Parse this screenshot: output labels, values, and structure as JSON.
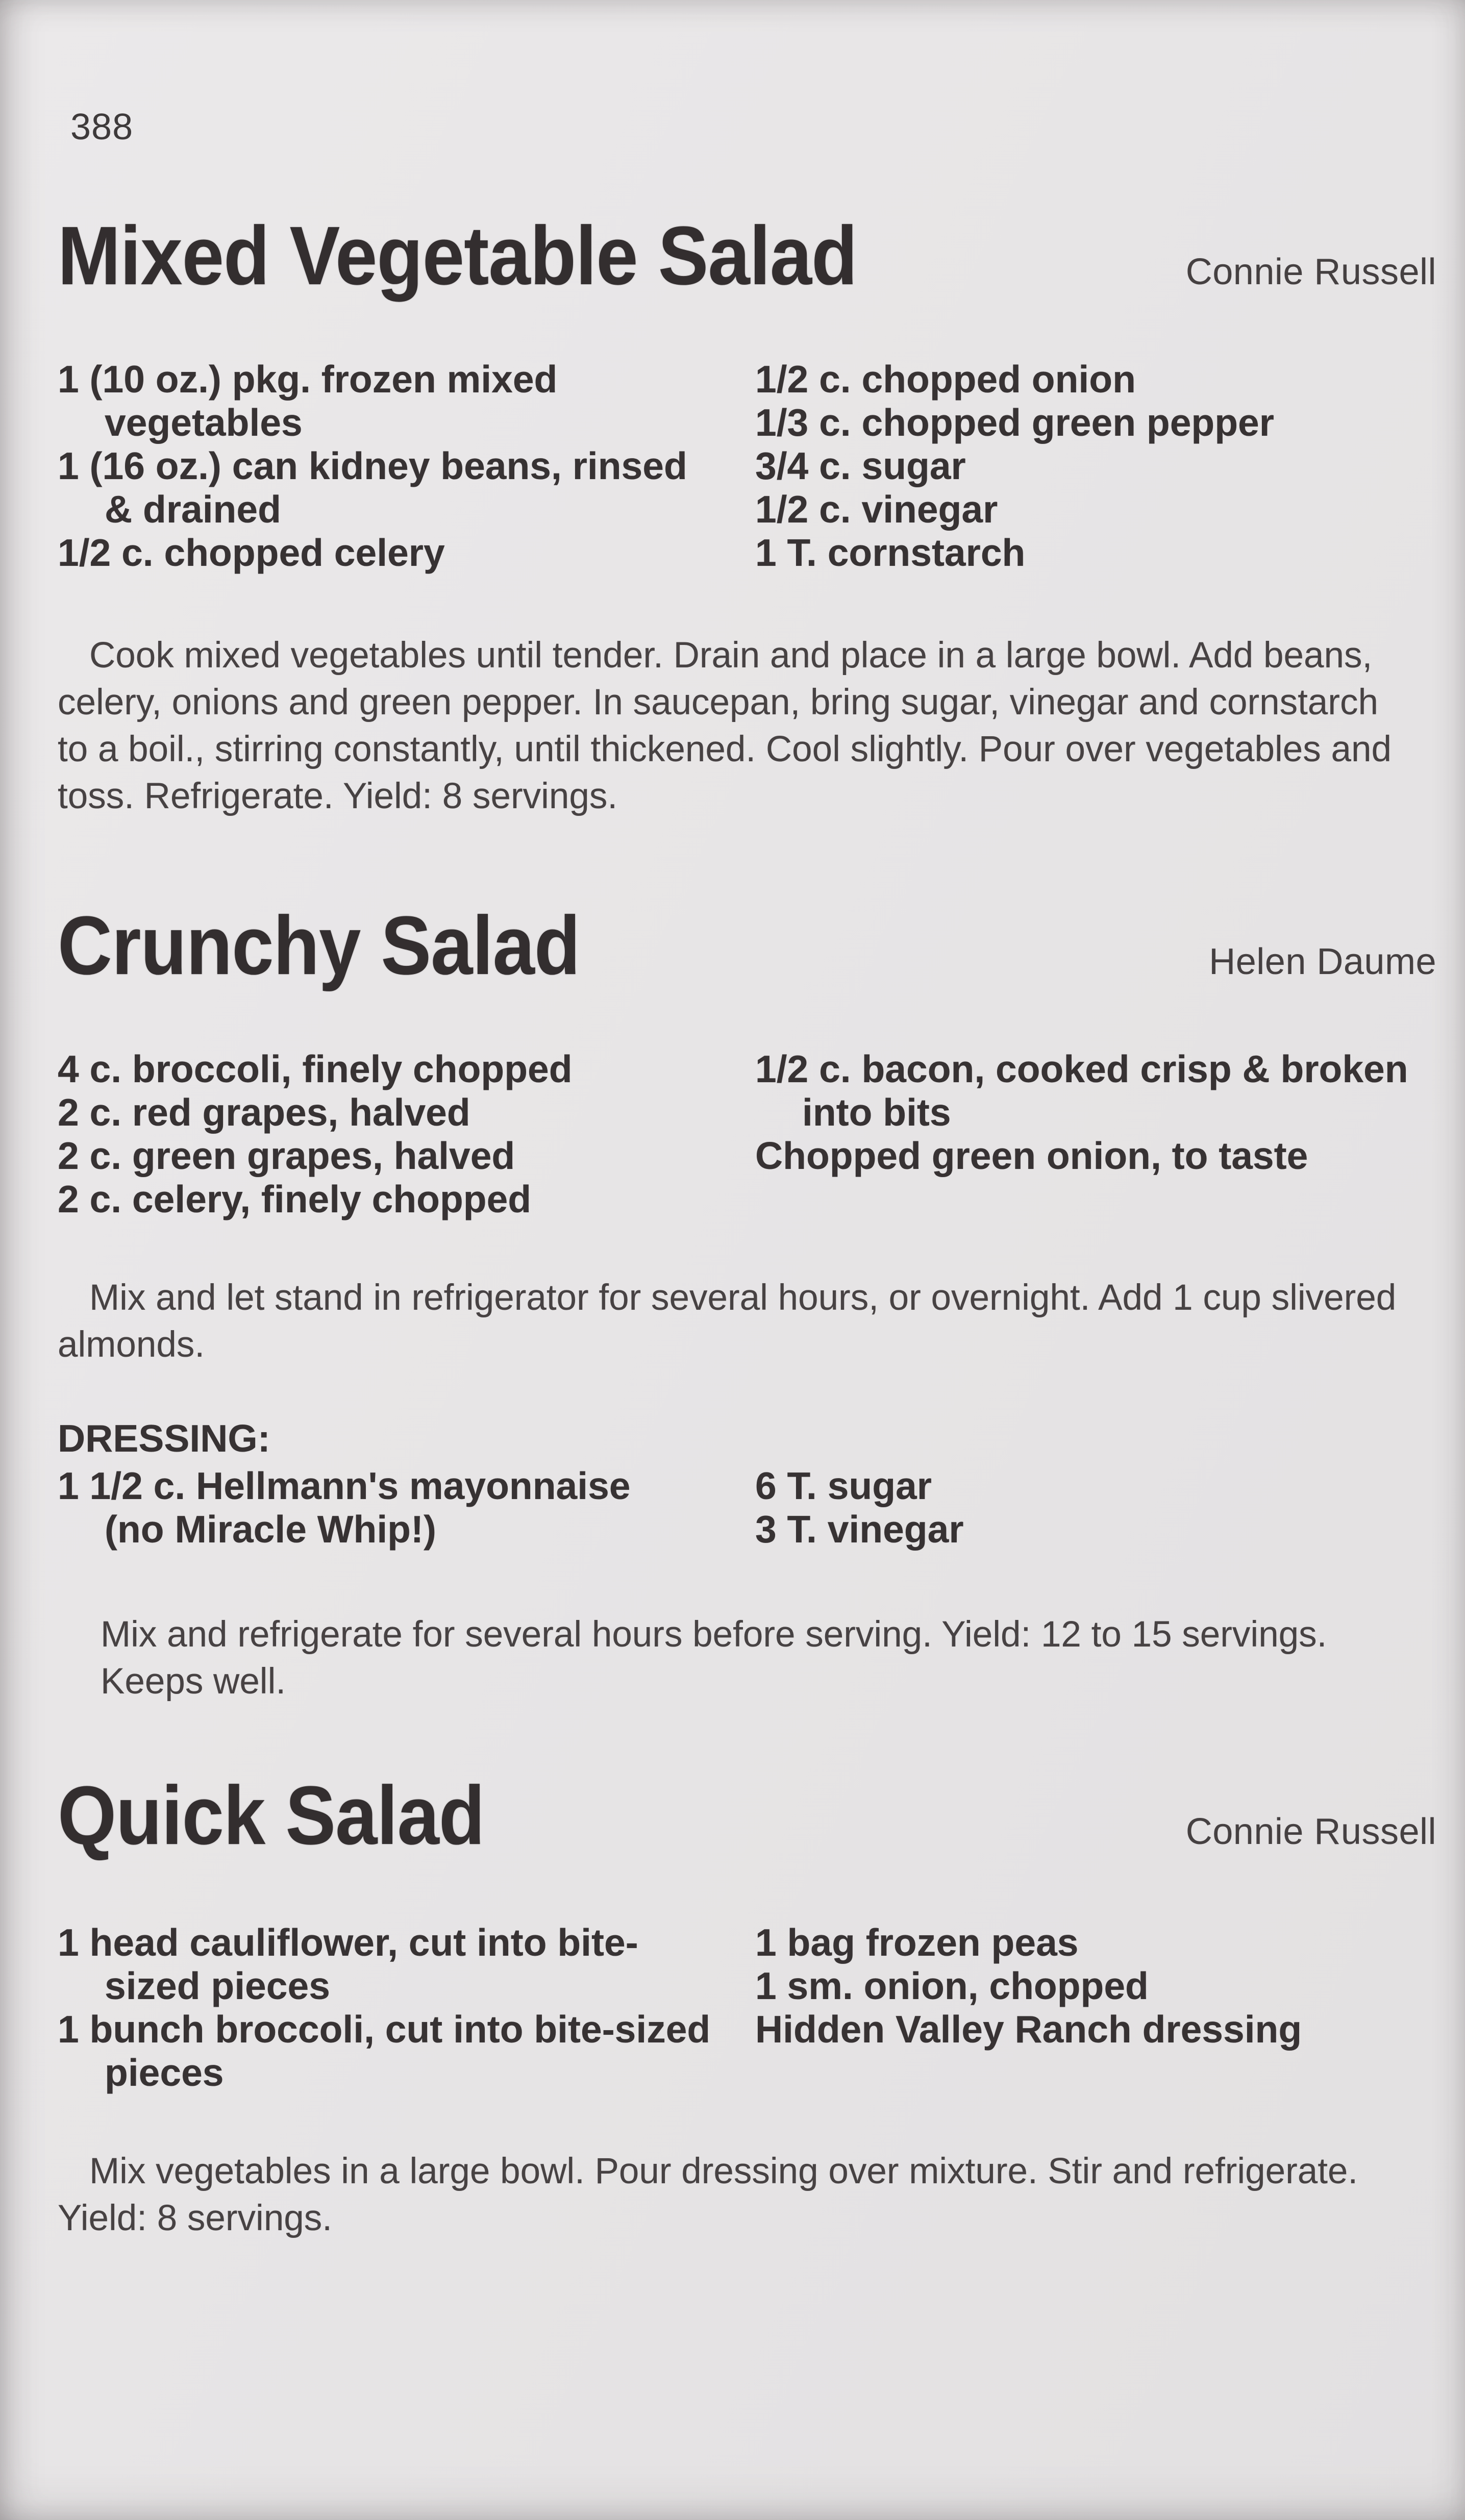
{
  "page": {
    "number": "388",
    "paper_color": "#e7e5e6",
    "ink_color": "#3a3536"
  },
  "recipes": [
    {
      "title": "Mixed Vegetable Salad",
      "author": "Connie Russell",
      "ingredients_left": [
        "1 (10 oz.) pkg. frozen mixed\nvegetables",
        "1 (16 oz.) can kidney beans, rinsed\n& drained",
        "1/2 c. chopped celery"
      ],
      "ingredients_right": [
        "1/2 c. chopped onion",
        "1/3 c. chopped green pepper",
        "3/4 c. sugar",
        "1/2 c. vinegar",
        "1 T. cornstarch"
      ],
      "instructions": "Cook mixed vegetables until tender. Drain and place in a large bowl. Add beans,\ncelery, onions and green pepper. In saucepan, bring sugar, vinegar and cornstarch\nto a boil., stirring constantly, until thickened. Cool slightly. Pour over vegetables and\ntoss. Refrigerate. Yield: 8 servings."
    },
    {
      "title": "Crunchy Salad",
      "author": "Helen Daume",
      "ingredients_left": [
        "4 c. broccoli, finely chopped",
        "2 c. red grapes, halved",
        "2 c. green grapes, halved",
        "2 c. celery, finely chopped"
      ],
      "ingredients_right": [
        "1/2 c. bacon, cooked crisp & broken\ninto bits",
        "Chopped green onion, to taste"
      ],
      "instructions": "Mix and let stand in refrigerator for several hours, or overnight. Add 1 cup slivered\nalmonds.",
      "dressing": {
        "heading": "DRESSING:",
        "ingredients_left": [
          "1 1/2 c. Hellmann's mayonnaise\n(no Miracle Whip!)"
        ],
        "ingredients_right": [
          "6 T. sugar",
          "3 T. vinegar"
        ],
        "instructions": "Mix and refrigerate for several hours before serving. Yield: 12 to 15 servings.\nKeeps well."
      }
    },
    {
      "title": "Quick Salad",
      "author": "Connie Russell",
      "ingredients_left": [
        "1 head cauliflower, cut into bite-\nsized pieces",
        "1 bunch broccoli, cut into bite-sized\npieces"
      ],
      "ingredients_right": [
        "1 bag frozen peas",
        "1 sm. onion, chopped",
        "Hidden Valley Ranch dressing"
      ],
      "instructions": "Mix vegetables in a large bowl. Pour dressing over mixture. Stir and refrigerate.\nYield: 8 servings."
    }
  ]
}
